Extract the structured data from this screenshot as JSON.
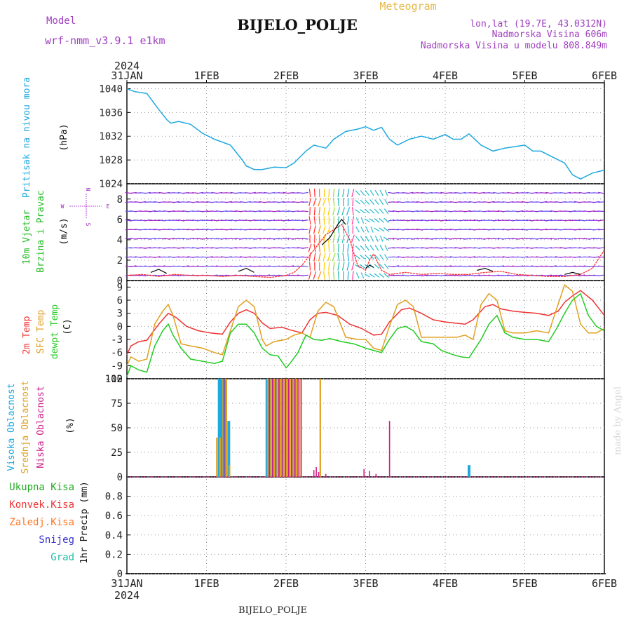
{
  "header": {
    "model_label": "Model",
    "model_name": "wrf-nmm_v3.9.1 e1km",
    "title": "BIJELO_POLJE",
    "meteogram_label": "Meteogram",
    "lonlat": "lon,lat (19.7E, 43.0312N)",
    "elevation": "Nadmorska Visina 606m",
    "model_elevation": "Nadmorska Visina u modelu 808.849m",
    "footer_station": "BIJELO_POLJE",
    "credit": "made by Angel"
  },
  "time_axis": {
    "year": "2024",
    "labels": [
      "31JAN",
      "1FEB",
      "2FEB",
      "3FEB",
      "4FEB",
      "5FEB",
      "6FEB"
    ]
  },
  "wind_compass": {
    "w": "W",
    "e": "E",
    "n": "N",
    "s": "S"
  },
  "colors": {
    "pressure": "#1ea8e0",
    "wind_speed": "#ff3030",
    "wind_gust": "#000000",
    "temp_2m": "#ee3333",
    "temp_sfc": "#e0a020",
    "dewpoint": "#22cc22",
    "cloud_high": "#1ea8e0",
    "cloud_mid": "#e0a020",
    "cloud_low": "#cc1c88",
    "precip_total": "#22aa22",
    "precip_conv": "#ee3333",
    "precip_frozen": "#ff7722",
    "precip_snow": "#3333cc",
    "precip_grad": "#22bbaa",
    "wind_label": "#22bb22",
    "wind_dir_label": "#a020c0"
  },
  "chart_data": [
    {
      "type": "line",
      "panel": "pressure",
      "ylabel_title": "Pritisak na nivou mora",
      "ylabel_unit": "(hPa)",
      "ylim": [
        1024,
        1041
      ],
      "yticks": [
        1024,
        1028,
        1032,
        1036,
        1040
      ],
      "xlim_days": [
        0,
        6
      ],
      "series": [
        {
          "name": "Pritisak na nivou mora",
          "x": [
            0,
            0.1,
            0.25,
            0.4,
            0.5,
            0.55,
            0.65,
            0.8,
            0.95,
            1.1,
            1.3,
            1.45,
            1.5,
            1.6,
            1.7,
            1.85,
            2.0,
            2.1,
            2.25,
            2.35,
            2.5,
            2.6,
            2.75,
            2.9,
            3.0,
            3.1,
            3.2,
            3.3,
            3.4,
            3.55,
            3.7,
            3.85,
            4.0,
            4.1,
            4.2,
            4.3,
            4.45,
            4.6,
            4.75,
            4.9,
            5.0,
            5.1,
            5.2,
            5.35,
            5.5,
            5.6,
            5.7,
            5.85,
            6.0
          ],
          "values": [
            1040,
            1039.5,
            1039.2,
            1036.5,
            1034.8,
            1034.2,
            1034.5,
            1034,
            1032.5,
            1031.5,
            1030.5,
            1028,
            1027,
            1026.4,
            1026.4,
            1026.8,
            1026.7,
            1027.5,
            1029.5,
            1030.5,
            1030,
            1031.5,
            1032.8,
            1033.2,
            1033.6,
            1033,
            1033.5,
            1031.5,
            1030.5,
            1031.5,
            1032,
            1031.5,
            1032.3,
            1031.5,
            1031.5,
            1032.4,
            1030.5,
            1029.5,
            1030,
            1030.3,
            1030.5,
            1029.5,
            1029.5,
            1028.5,
            1027.5,
            1025.5,
            1024.8,
            1025.8,
            1026.3
          ]
        }
      ]
    },
    {
      "type": "line",
      "panel": "wind",
      "ylabel_title": "10m Vjetar",
      "ylabel_sub": "Brzina i Pravac",
      "ylabel_unit": "(m/s)",
      "ylim": [
        0,
        9.5
      ],
      "yticks": [
        0,
        2,
        4,
        6,
        8
      ],
      "xlim_days": [
        0,
        6
      ],
      "series": [
        {
          "name": "Brzina",
          "x": [
            0,
            0.2,
            0.4,
            0.6,
            0.8,
            1.0,
            1.2,
            1.4,
            1.6,
            1.8,
            2.0,
            2.1,
            2.2,
            2.3,
            2.4,
            2.5,
            2.6,
            2.7,
            2.8,
            2.9,
            3.0,
            3.05,
            3.1,
            3.2,
            3.3,
            3.5,
            3.7,
            3.9,
            4.1,
            4.3,
            4.5,
            4.7,
            4.9,
            5.1,
            5.3,
            5.5,
            5.7,
            5.85,
            6.0
          ],
          "values": [
            0.5,
            0.6,
            0.4,
            0.6,
            0.5,
            0.5,
            0.4,
            0.5,
            0.4,
            0.3,
            0.5,
            0.8,
            1.5,
            2.5,
            3.5,
            4.5,
            5.0,
            5.5,
            4.0,
            1.5,
            1.0,
            2.0,
            2.6,
            1.0,
            0.6,
            0.8,
            0.6,
            0.7,
            0.6,
            0.6,
            0.8,
            0.9,
            0.6,
            0.5,
            0.4,
            0.4,
            0.6,
            1.2,
            3.0
          ]
        },
        {
          "name": "Udar",
          "x": [
            0.3,
            0.4,
            0.5,
            1.4,
            1.5,
            1.6,
            2.45,
            2.55,
            2.65,
            2.7,
            2.75,
            3.0,
            3.05,
            3.1,
            4.4,
            4.5,
            4.6,
            5.5,
            5.6,
            5.7
          ],
          "values": [
            0.8,
            1.1,
            0.7,
            0.9,
            1.2,
            0.8,
            3.5,
            4.2,
            5.5,
            6.0,
            5.5,
            1.2,
            1.5,
            1.3,
            1.0,
            1.2,
            0.9,
            0.6,
            0.8,
            0.6
          ]
        }
      ]
    },
    {
      "type": "line",
      "panel": "temperature",
      "ylabel_t2": "2m Temp",
      "ylabel_sfc": "SFC Temp",
      "ylabel_dew": "dewpt Temp",
      "ylabel_unit": "(C)",
      "ylim": [
        -12,
        10.5
      ],
      "yticks": [
        -12,
        -9,
        -6,
        -3,
        0,
        3,
        6,
        9
      ],
      "xlim_days": [
        0,
        6
      ],
      "series": [
        {
          "name": "2m Temp",
          "x": [
            0,
            0.05,
            0.15,
            0.25,
            0.4,
            0.52,
            0.62,
            0.75,
            0.9,
            1.05,
            1.2,
            1.3,
            1.4,
            1.5,
            1.6,
            1.7,
            1.8,
            1.95,
            2.05,
            2.2,
            2.3,
            2.4,
            2.5,
            2.65,
            2.8,
            2.95,
            3.1,
            3.2,
            3.3,
            3.45,
            3.55,
            3.7,
            3.85,
            4.0,
            4.15,
            4.25,
            4.35,
            4.5,
            4.6,
            4.7,
            4.85,
            5.0,
            5.15,
            5.3,
            5.42,
            5.5,
            5.6,
            5.7,
            5.85,
            6.0
          ],
          "values": [
            -6.5,
            -4.5,
            -3.5,
            -3.2,
            0.5,
            3.0,
            2.0,
            0.0,
            -1.0,
            -1.5,
            -1.8,
            1.0,
            3.0,
            3.8,
            3.0,
            0.8,
            -0.5,
            -0.2,
            -0.8,
            -1.5,
            1.5,
            3.0,
            3.2,
            2.5,
            0.5,
            -0.5,
            -2.0,
            -1.8,
            1.0,
            3.8,
            4.2,
            3.0,
            1.5,
            1.0,
            0.7,
            0.5,
            1.5,
            4.5,
            5.0,
            4.0,
            3.5,
            3.2,
            3.0,
            2.5,
            3.5,
            5.5,
            7.0,
            8.2,
            6.0,
            2.5
          ]
        },
        {
          "name": "SFC Temp",
          "x": [
            0,
            0.05,
            0.15,
            0.25,
            0.35,
            0.45,
            0.52,
            0.58,
            0.68,
            0.8,
            0.95,
            1.1,
            1.2,
            1.3,
            1.4,
            1.5,
            1.6,
            1.7,
            1.75,
            1.85,
            2.0,
            2.1,
            2.2,
            2.3,
            2.4,
            2.5,
            2.6,
            2.75,
            2.9,
            3.0,
            3.1,
            3.2,
            3.3,
            3.4,
            3.5,
            3.6,
            3.7,
            3.85,
            4.0,
            4.15,
            4.25,
            4.35,
            4.45,
            4.55,
            4.65,
            4.75,
            4.85,
            5.0,
            5.15,
            5.3,
            5.4,
            5.5,
            5.6,
            5.7,
            5.8,
            5.9,
            6.0
          ],
          "values": [
            -9.0,
            -7.0,
            -8.0,
            -7.5,
            0.5,
            3.5,
            5.0,
            2.5,
            -4.0,
            -4.5,
            -5.0,
            -6.0,
            -6.5,
            -1.0,
            4.5,
            6.0,
            4.5,
            -3.0,
            -4.5,
            -3.5,
            -3.0,
            -2.0,
            -1.5,
            -2.5,
            3.5,
            5.5,
            4.5,
            -2.5,
            -3.0,
            -3.0,
            -5.0,
            -5.5,
            0.0,
            5.0,
            6.0,
            4.5,
            -2.5,
            -2.5,
            -2.5,
            -2.5,
            -2.0,
            -3.0,
            5.0,
            7.5,
            6.0,
            -1.0,
            -1.5,
            -1.5,
            -1.0,
            -1.5,
            4.0,
            9.5,
            8.0,
            0.5,
            -1.5,
            -1.5,
            -0.5
          ]
        },
        {
          "name": "dewpt Temp",
          "x": [
            0,
            0.05,
            0.15,
            0.25,
            0.35,
            0.45,
            0.52,
            0.58,
            0.68,
            0.8,
            0.95,
            1.1,
            1.2,
            1.3,
            1.4,
            1.5,
            1.6,
            1.7,
            1.8,
            1.9,
            2.0,
            2.05,
            2.15,
            2.25,
            2.35,
            2.45,
            2.55,
            2.7,
            2.85,
            3.0,
            3.1,
            3.2,
            3.3,
            3.4,
            3.5,
            3.6,
            3.7,
            3.85,
            3.95,
            4.1,
            4.2,
            4.3,
            4.45,
            4.55,
            4.65,
            4.75,
            4.85,
            5.0,
            5.15,
            5.3,
            5.4,
            5.5,
            5.6,
            5.7,
            5.8,
            5.9,
            6.0
          ],
          "values": [
            -11.5,
            -9.0,
            -10.0,
            -10.5,
            -4.5,
            -1.0,
            0.5,
            -2.0,
            -5.0,
            -7.5,
            -8.0,
            -8.5,
            -8.0,
            -1.5,
            0.5,
            0.5,
            -1.5,
            -5.0,
            -6.5,
            -6.8,
            -9.5,
            -8.5,
            -6.0,
            -2.0,
            -3.0,
            -3.2,
            -2.8,
            -3.5,
            -4.0,
            -5.0,
            -5.5,
            -6.0,
            -3.0,
            -0.5,
            0.0,
            -1.0,
            -3.5,
            -4.0,
            -5.5,
            -6.5,
            -7.0,
            -7.2,
            -3.0,
            0.5,
            2.5,
            -1.5,
            -2.5,
            -3.0,
            -3.0,
            -3.5,
            -0.5,
            3.0,
            6.0,
            7.5,
            2.5,
            0.0,
            -1.0
          ]
        }
      ]
    },
    {
      "type": "bar",
      "panel": "clouds",
      "ylabel_high": "Visoka Oblacnost",
      "ylabel_mid": "Srednja Oblacnost",
      "ylabel_low": "Niska Oblacnost",
      "ylabel_unit": "(%)",
      "ylim": [
        0,
        100
      ],
      "yticks": [
        0,
        25,
        50,
        75,
        100
      ],
      "xlim_days": [
        0,
        6
      ],
      "series": [
        {
          "name": "Visoka Oblacnost",
          "x": [
            1.16,
            1.18,
            1.2,
            1.24,
            1.28,
            1.76,
            1.78,
            1.8,
            1.84,
            1.88,
            1.92,
            1.96,
            2.0,
            2.04,
            2.08,
            2.12,
            4.3
          ],
          "values": [
            100,
            100,
            100,
            100,
            57,
            100,
            100,
            100,
            100,
            100,
            100,
            100,
            100,
            100,
            100,
            100,
            12
          ]
        },
        {
          "name": "Srednja Oblacnost",
          "x": [
            1.13,
            1.17,
            1.21,
            1.25,
            1.29,
            1.77,
            1.81,
            1.85,
            1.89,
            1.93,
            1.97,
            2.01,
            2.05,
            2.09,
            2.13,
            2.17,
            2.43
          ],
          "values": [
            40,
            40,
            100,
            100,
            12,
            100,
            100,
            100,
            100,
            100,
            100,
            100,
            100,
            100,
            100,
            100,
            100
          ]
        },
        {
          "name": "Niska Oblacnost",
          "x": [
            1.22,
            1.79,
            1.83,
            1.87,
            1.91,
            1.95,
            1.99,
            2.03,
            2.07,
            2.11,
            2.15,
            2.19,
            2.35,
            2.38,
            2.41,
            2.5,
            2.98,
            3.05,
            3.13,
            3.3
          ],
          "values": [
            100,
            100,
            100,
            100,
            100,
            100,
            100,
            100,
            100,
            100,
            100,
            100,
            7,
            10,
            5,
            3,
            8,
            6,
            3,
            57
          ]
        }
      ]
    },
    {
      "type": "bar",
      "panel": "precip",
      "legend": [
        "Ukupna Kisa",
        "Konvek.Kisa",
        "Zaledj.Kisa",
        "Snijeg",
        "Grad"
      ],
      "ylabel_unit": "1hr Precip (mm)",
      "ylim": [
        0,
        1.0
      ],
      "yticks": [
        0,
        0.2,
        0.4,
        0.6,
        0.8
      ],
      "xlim_days": [
        0,
        6
      ],
      "series": []
    }
  ]
}
